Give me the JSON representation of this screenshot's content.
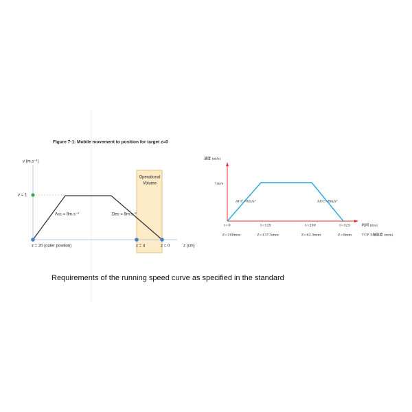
{
  "left_figure": {
    "title": "Figure 7-1:  Mobile movement to position for target z=0",
    "y_axis_label": "v (m.s⁻¹)",
    "v_label": "v = 1",
    "operational_volume": [
      "Operational",
      "Volume"
    ],
    "acc_label": "Acc = 8m.s⁻²",
    "dec_label": "Dec  = 8m.s⁻²",
    "z_labels": [
      "z = 20 (outer position)",
      "z = 4",
      "z = 0"
    ],
    "x_axis_label": "z (cm)"
  },
  "right_figure": {
    "y_axis_label": "速度 (m/s)",
    "v_label": "1m/s",
    "acc_label": "ACC=8m/s²",
    "dec_label": "ACC=8m/s²",
    "time_labels": [
      "t=0",
      "t=125",
      "t=200",
      "t=325"
    ],
    "time_axis_label": "时间 (ms)",
    "z_labels": [
      "Z=200mm",
      "Z=137.5mm",
      "Z=62.5mm",
      "Z=0mm"
    ],
    "z_axis_label": "TCP Z轴高度 (mm)"
  },
  "caption": "Requirements of the running speed curve as specified in the standard"
}
